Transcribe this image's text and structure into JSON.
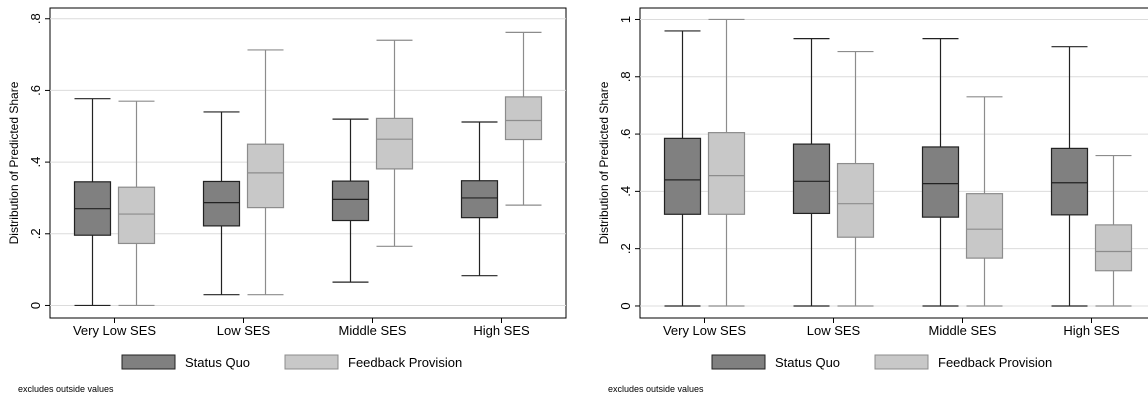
{
  "chart_data": [
    {
      "type": "box",
      "y_label": "Distribution of Predicted Share",
      "note": "excludes outside values",
      "categories": [
        "Very Low SES",
        "Low SES",
        "Middle SES",
        "High SES"
      ],
      "ylim": [
        -0.035,
        0.83
      ],
      "yticks": [
        0,
        {
          "value": 0.2,
          "label": ".2"
        },
        {
          "value": 0.4,
          "label": ".4"
        },
        {
          "value": 0.6,
          "label": ".6"
        },
        {
          "value": 0.8,
          "label": ".8"
        }
      ],
      "grid": true,
      "series": [
        {
          "name": "Status Quo",
          "color": "#808080",
          "edge": "#222222",
          "whisker_low": [
            0,
            0.03,
            0.065,
            0.083
          ],
          "q1": [
            0.196,
            0.222,
            0.237,
            0.245
          ],
          "median": [
            0.27,
            0.287,
            0.296,
            0.3
          ],
          "q3": [
            0.345,
            0.346,
            0.347,
            0.348
          ],
          "whisker_high": [
            0.577,
            0.54,
            0.52,
            0.512
          ]
        },
        {
          "name": "Feedback Provision",
          "color": "#c8c8c8",
          "edge": "#8c8c8c",
          "whisker_low": [
            0,
            0.03,
            0.165,
            0.28
          ],
          "q1": [
            0.173,
            0.273,
            0.381,
            0.463
          ],
          "median": [
            0.255,
            0.37,
            0.464,
            0.516
          ],
          "q3": [
            0.33,
            0.45,
            0.522,
            0.582
          ],
          "whisker_high": [
            0.57,
            0.713,
            0.74,
            0.762
          ]
        }
      ]
    },
    {
      "type": "box",
      "y_label": "Distribution of Predicted Share",
      "note": "excludes outside values",
      "categories": [
        "Very Low SES",
        "Low SES",
        "Middle SES",
        "High SES"
      ],
      "ylim": [
        -0.042,
        1.04
      ],
      "yticks": [
        0,
        {
          "value": 0.2,
          "label": ".2"
        },
        {
          "value": 0.4,
          "label": ".4"
        },
        {
          "value": 0.6,
          "label": ".6"
        },
        {
          "value": 0.8,
          "label": ".8"
        },
        1
      ],
      "grid": true,
      "series": [
        {
          "name": "Status Quo",
          "color": "#808080",
          "edge": "#222222",
          "whisker_low": [
            0,
            0,
            0,
            0
          ],
          "q1": [
            0.32,
            0.323,
            0.31,
            0.318
          ],
          "median": [
            0.44,
            0.435,
            0.427,
            0.43
          ],
          "q3": [
            0.585,
            0.565,
            0.555,
            0.55
          ],
          "whisker_high": [
            0.96,
            0.933,
            0.933,
            0.905
          ]
        },
        {
          "name": "Feedback Provision",
          "color": "#c8c8c8",
          "edge": "#8c8c8c",
          "whisker_low": [
            0,
            0,
            0,
            0
          ],
          "q1": [
            0.32,
            0.24,
            0.167,
            0.123
          ],
          "median": [
            0.455,
            0.357,
            0.268,
            0.19
          ],
          "q3": [
            0.605,
            0.497,
            0.392,
            0.283
          ],
          "whisker_high": [
            1.0,
            0.888,
            0.73,
            0.525
          ]
        }
      ]
    }
  ]
}
